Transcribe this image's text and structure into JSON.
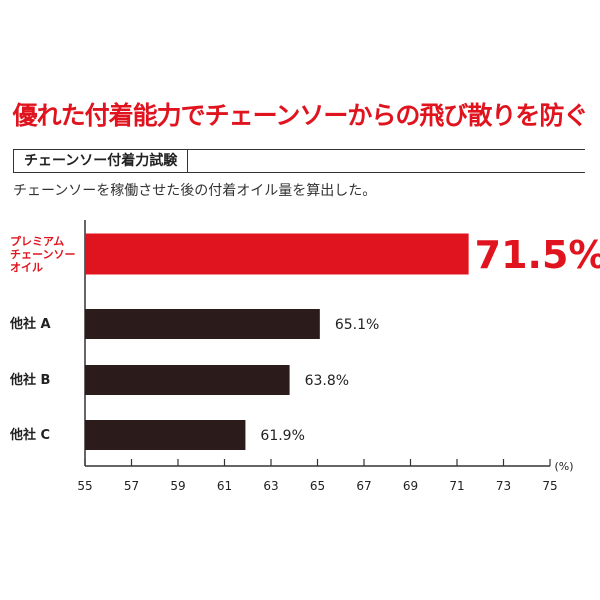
{
  "headline": "優れた付着能力でチェーンソーからの飛び散りを防ぐ",
  "section_label": "チェーンソー付着力試験",
  "subtitle": "チェーンソーを稼働させた後の付着オイル量を算出した。",
  "colors": {
    "accent": "#e0141e",
    "bar": "#2b1b1b",
    "axis": "#333333"
  },
  "chart_data": {
    "type": "bar",
    "orientation": "horizontal",
    "categories": [
      [
        "プレミアム",
        "チェーンソー",
        "オイル"
      ],
      [
        "他社 A"
      ],
      [
        "他社 B"
      ],
      [
        "他社 C"
      ]
    ],
    "values": [
      71.5,
      65.1,
      63.8,
      61.9
    ],
    "value_labels": [
      "71.5%",
      "65.1%",
      "63.8%",
      "61.9%"
    ],
    "highlight_index": 0,
    "xlim": [
      55,
      75
    ],
    "xticks": [
      55,
      57,
      59,
      61,
      63,
      65,
      67,
      69,
      71,
      73,
      75
    ],
    "unit_label": "(%)",
    "grid": false
  }
}
